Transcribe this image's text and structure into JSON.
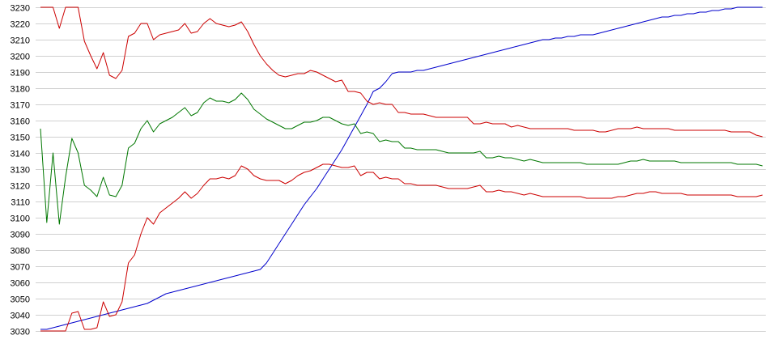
{
  "chart_data": {
    "type": "line",
    "title": "",
    "xlabel": "",
    "ylabel": "",
    "ylim": [
      3030,
      3230
    ],
    "y_ticks": [
      "3030",
      "3040",
      "3050",
      "3060",
      "3070",
      "3080",
      "3090",
      "3100",
      "3110",
      "3120",
      "3130",
      "3140",
      "3150",
      "3160",
      "3170",
      "3180",
      "3190",
      "3200",
      "3210",
      "3220",
      "3230"
    ],
    "grid": true,
    "point_count": 116,
    "series": [
      {
        "color": "#0000cc",
        "values": [
          3031,
          3031,
          3032,
          3033,
          3034,
          3035,
          3036,
          3037,
          3038,
          3039,
          3040,
          3041,
          3042,
          3043,
          3044,
          3045,
          3046,
          3047,
          3049,
          3051,
          3053,
          3054,
          3055,
          3056,
          3057,
          3058,
          3059,
          3060,
          3061,
          3062,
          3063,
          3064,
          3065,
          3066,
          3067,
          3068,
          3072,
          3078,
          3084,
          3090,
          3096,
          3102,
          3108,
          3113,
          3118,
          3124,
          3130,
          3136,
          3142,
          3149,
          3156,
          3163,
          3170,
          3178,
          3180,
          3184,
          3189,
          3190,
          3190,
          3190,
          3191,
          3191,
          3192,
          3193,
          3194,
          3195,
          3196,
          3197,
          3198,
          3199,
          3200,
          3201,
          3202,
          3203,
          3204,
          3205,
          3206,
          3207,
          3208,
          3209,
          3210,
          3210,
          3211,
          3211,
          3212,
          3212,
          3213,
          3213,
          3213,
          3214,
          3215,
          3216,
          3217,
          3218,
          3219,
          3220,
          3221,
          3222,
          3223,
          3224,
          3224,
          3225,
          3225,
          3226,
          3226,
          3227,
          3227,
          3228,
          3228,
          3229,
          3229,
          3230,
          3230,
          3230,
          3230,
          3230
        ]
      },
      {
        "color": "#cc0000",
        "values": [
          3230,
          3230,
          3230,
          3217,
          3230,
          3230,
          3230,
          3209,
          3200,
          3192,
          3202,
          3188,
          3186,
          3191,
          3212,
          3214,
          3220,
          3220,
          3210,
          3213,
          3214,
          3215,
          3216,
          3220,
          3214,
          3215,
          3220,
          3223,
          3220,
          3219,
          3218,
          3219,
          3221,
          3215,
          3207,
          3200,
          3195,
          3191,
          3188,
          3187,
          3188,
          3189,
          3189,
          3191,
          3190,
          3188,
          3186,
          3184,
          3185,
          3178,
          3178,
          3177,
          3172,
          3170,
          3171,
          3170,
          3170,
          3165,
          3165,
          3164,
          3164,
          3164,
          3163,
          3162,
          3162,
          3162,
          3162,
          3162,
          3162,
          3158,
          3158,
          3159,
          3158,
          3158,
          3158,
          3156,
          3157,
          3156,
          3155,
          3155,
          3155,
          3155,
          3155,
          3155,
          3155,
          3154,
          3154,
          3154,
          3154,
          3153,
          3153,
          3154,
          3155,
          3155,
          3155,
          3156,
          3155,
          3155,
          3155,
          3155,
          3155,
          3154,
          3154,
          3154,
          3154,
          3154,
          3154,
          3154,
          3154,
          3154,
          3153,
          3153,
          3153,
          3153,
          3151,
          3150
        ]
      },
      {
        "color": "#007700",
        "values": [
          3155,
          3097,
          3140,
          3096,
          3125,
          3149,
          3140,
          3120,
          3117,
          3113,
          3125,
          3114,
          3113,
          3120,
          3143,
          3146,
          3155,
          3160,
          3153,
          3158,
          3160,
          3162,
          3165,
          3168,
          3163,
          3165,
          3171,
          3174,
          3172,
          3172,
          3171,
          3173,
          3177,
          3173,
          3167,
          3164,
          3161,
          3159,
          3157,
          3155,
          3155,
          3157,
          3159,
          3159,
          3160,
          3162,
          3162,
          3160,
          3158,
          3157,
          3158,
          3152,
          3153,
          3152,
          3147,
          3148,
          3147,
          3147,
          3143,
          3143,
          3142,
          3142,
          3142,
          3142,
          3141,
          3140,
          3140,
          3140,
          3140,
          3140,
          3141,
          3137,
          3137,
          3138,
          3137,
          3137,
          3136,
          3135,
          3136,
          3135,
          3134,
          3134,
          3134,
          3134,
          3134,
          3134,
          3134,
          3133,
          3133,
          3133,
          3133,
          3133,
          3133,
          3134,
          3135,
          3135,
          3136,
          3135,
          3135,
          3135,
          3135,
          3135,
          3134,
          3134,
          3134,
          3134,
          3134,
          3134,
          3134,
          3134,
          3134,
          3133,
          3133,
          3133,
          3133,
          3132
        ]
      },
      {
        "color": "#cc0000",
        "values": [
          3030,
          3030,
          3030,
          3030,
          3030,
          3041,
          3042,
          3031,
          3031,
          3032,
          3048,
          3039,
          3040,
          3048,
          3072,
          3077,
          3090,
          3100,
          3096,
          3103,
          3106,
          3109,
          3112,
          3116,
          3112,
          3115,
          3120,
          3124,
          3124,
          3125,
          3124,
          3126,
          3132,
          3130,
          3126,
          3124,
          3123,
          3123,
          3123,
          3121,
          3123,
          3126,
          3128,
          3129,
          3131,
          3133,
          3133,
          3132,
          3131,
          3131,
          3132,
          3126,
          3128,
          3128,
          3124,
          3125,
          3124,
          3124,
          3121,
          3121,
          3120,
          3120,
          3120,
          3120,
          3119,
          3118,
          3118,
          3118,
          3118,
          3119,
          3120,
          3116,
          3116,
          3117,
          3116,
          3116,
          3115,
          3114,
          3115,
          3114,
          3113,
          3113,
          3113,
          3113,
          3113,
          3113,
          3113,
          3112,
          3112,
          3112,
          3112,
          3112,
          3113,
          3113,
          3114,
          3115,
          3115,
          3116,
          3116,
          3115,
          3115,
          3115,
          3115,
          3114,
          3114,
          3114,
          3114,
          3114,
          3114,
          3114,
          3114,
          3113,
          3113,
          3113,
          3113,
          3114
        ]
      }
    ]
  }
}
